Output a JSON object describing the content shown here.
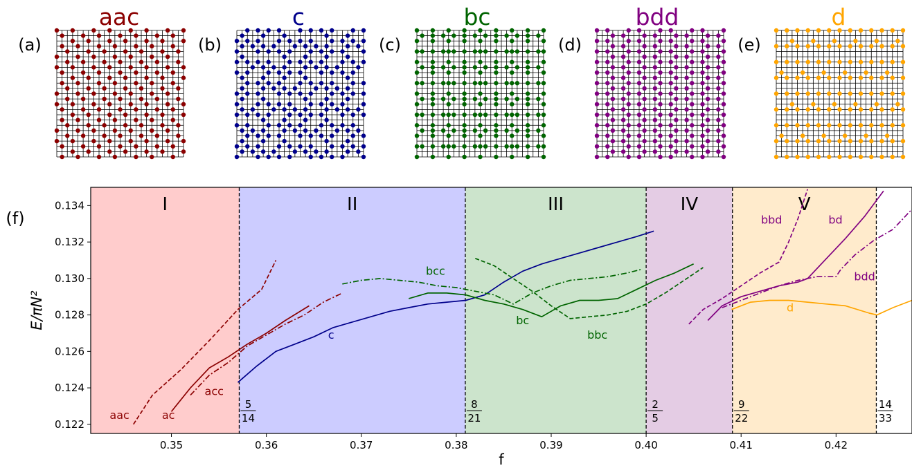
{
  "panels": [
    {
      "label": "(a)",
      "title": "aac",
      "color": "#8b0000",
      "pattern": "aac"
    },
    {
      "label": "(b)",
      "title": "c",
      "color": "#00008b",
      "pattern": "c"
    },
    {
      "label": "(c)",
      "title": "bc",
      "color": "#006400",
      "pattern": "bc"
    },
    {
      "label": "(d)",
      "title": "bdd",
      "color": "#800080",
      "pattern": "bdd"
    },
    {
      "label": "(e)",
      "title": "d",
      "color": "#ffa500",
      "pattern": "d"
    }
  ],
  "chart_data": {
    "type": "line",
    "panel_label": "(f)",
    "xlabel": "f",
    "ylabel": "E/πN²",
    "xlim": [
      0.3415,
      0.428
    ],
    "ylim": [
      0.1215,
      0.135
    ],
    "xticks": [
      0.35,
      0.36,
      0.37,
      0.38,
      0.39,
      0.4,
      0.41,
      0.42
    ],
    "xtick_labels": [
      "0.35",
      "0.36",
      "0.37",
      "0.38",
      "0.39",
      "0.40",
      "0.41",
      "0.42"
    ],
    "yticks": [
      0.122,
      0.124,
      0.126,
      0.128,
      0.13,
      0.132,
      0.134
    ],
    "ytick_labels": [
      "0.122",
      "0.124",
      "0.126",
      "0.128",
      "0.130",
      "0.132",
      "0.134"
    ],
    "grid": false,
    "regions": [
      {
        "name": "I",
        "x0": 0.3415,
        "x1": 0.357143,
        "color": "#ffcccc"
      },
      {
        "name": "II",
        "x0": 0.357143,
        "x1": 0.380952,
        "color": "#ccccff"
      },
      {
        "name": "III",
        "x0": 0.380952,
        "x1": 0.4,
        "color": "#cce4cc"
      },
      {
        "name": "IV",
        "x0": 0.4,
        "x1": 0.409091,
        "color": "#e4cce4"
      },
      {
        "name": "V",
        "x0": 0.409091,
        "x1": 0.424242,
        "color": "#ffebcc"
      }
    ],
    "boundaries": [
      {
        "x": 0.357143,
        "num": "5",
        "den": "14"
      },
      {
        "x": 0.380952,
        "num": "8",
        "den": "21"
      },
      {
        "x": 0.4,
        "num": "2",
        "den": "5"
      },
      {
        "x": 0.409091,
        "num": "9",
        "den": "22"
      },
      {
        "x": 0.424242,
        "num": "14",
        "den": "33"
      }
    ],
    "series": [
      {
        "name": "aac",
        "color": "#8b0000",
        "dash": "dashed",
        "x": [
          0.346,
          0.348,
          0.351,
          0.354,
          0.357,
          0.3595,
          0.361
        ],
        "y": [
          0.122,
          0.1236,
          0.125,
          0.1266,
          0.1283,
          0.1294,
          0.131
        ]
      },
      {
        "name": "ac",
        "color": "#8b0000",
        "dash": "solid",
        "x": [
          0.35,
          0.352,
          0.354,
          0.356,
          0.358,
          0.36,
          0.362,
          0.3645
        ],
        "y": [
          0.1227,
          0.124,
          0.1251,
          0.1257,
          0.1264,
          0.127,
          0.1277,
          0.1285
        ]
      },
      {
        "name": "acc",
        "color": "#8b0000",
        "dash": "dashdot",
        "x": [
          0.352,
          0.354,
          0.356,
          0.358,
          0.36,
          0.362,
          0.364,
          0.366,
          0.368
        ],
        "y": [
          0.1236,
          0.1247,
          0.1254,
          0.1263,
          0.1269,
          0.1275,
          0.128,
          0.1287,
          0.1292
        ]
      },
      {
        "name": "c",
        "color": "#00008b",
        "dash": "solid",
        "x": [
          0.357,
          0.359,
          0.361,
          0.363,
          0.365,
          0.367,
          0.369,
          0.371,
          0.373,
          0.375,
          0.377,
          0.379,
          0.381,
          0.383,
          0.385,
          0.387,
          0.389,
          0.391,
          0.393,
          0.395,
          0.397,
          0.399,
          0.4008
        ],
        "y": [
          0.1243,
          0.1252,
          0.126,
          0.1264,
          0.1268,
          0.1273,
          0.1276,
          0.1279,
          0.1282,
          0.1284,
          0.1286,
          0.1287,
          0.1288,
          0.1291,
          0.1298,
          0.1304,
          0.1308,
          0.1311,
          0.1314,
          0.1317,
          0.132,
          0.1323,
          0.1326
        ]
      },
      {
        "name": "bcc",
        "color": "#006400",
        "dash": "dashdot",
        "x": [
          0.368,
          0.37,
          0.372,
          0.374,
          0.376,
          0.378,
          0.38,
          0.382,
          0.384,
          0.386,
          0.388,
          0.39,
          0.392,
          0.394,
          0.396,
          0.398,
          0.3995
        ],
        "y": [
          0.1297,
          0.1299,
          0.13,
          0.1299,
          0.1298,
          0.1296,
          0.1295,
          0.1293,
          0.1291,
          0.1286,
          0.1292,
          0.1296,
          0.1299,
          0.13,
          0.1301,
          0.1303,
          0.1305
        ]
      },
      {
        "name": "bc",
        "color": "#006400",
        "dash": "solid",
        "x": [
          0.375,
          0.377,
          0.379,
          0.381,
          0.383,
          0.385,
          0.387,
          0.389,
          0.391,
          0.393,
          0.395,
          0.397,
          0.399,
          0.401,
          0.403,
          0.405
        ],
        "y": [
          0.1289,
          0.1292,
          0.1292,
          0.1291,
          0.1288,
          0.1286,
          0.1283,
          0.1279,
          0.1285,
          0.1288,
          0.1288,
          0.1289,
          0.1294,
          0.1299,
          0.1303,
          0.1308
        ]
      },
      {
        "name": "bbc",
        "color": "#006400",
        "dash": "dashed",
        "x": [
          0.382,
          0.384,
          0.386,
          0.388,
          0.39,
          0.392,
          0.394,
          0.396,
          0.398,
          0.4,
          0.402,
          0.404,
          0.406
        ],
        "y": [
          0.1311,
          0.1307,
          0.13,
          0.1293,
          0.1285,
          0.1278,
          0.1279,
          0.128,
          0.1282,
          0.1286,
          0.1292,
          0.1299,
          0.1306
        ]
      },
      {
        "name": "bbd",
        "color": "#800080",
        "dash": "dashed",
        "x": [
          0.4045,
          0.406,
          0.408,
          0.41,
          0.412,
          0.414,
          0.415,
          0.416,
          0.417
        ],
        "y": [
          0.1275,
          0.1283,
          0.1289,
          0.1296,
          0.1303,
          0.1309,
          0.132,
          0.1333,
          0.1349
        ]
      },
      {
        "name": "bd",
        "color": "#800080",
        "dash": "solid",
        "x": [
          0.4065,
          0.408,
          0.41,
          0.412,
          0.414,
          0.416,
          0.417,
          0.419,
          0.421,
          0.423,
          0.425
        ],
        "y": [
          0.1277,
          0.1285,
          0.129,
          0.1293,
          0.1296,
          0.1298,
          0.13,
          0.1311,
          0.1322,
          0.1334,
          0.1348
        ]
      },
      {
        "name": "bdd",
        "color": "#800080",
        "dash": "dashdot",
        "x": [
          0.408,
          0.41,
          0.412,
          0.414,
          0.416,
          0.418,
          0.42,
          0.4205,
          0.422,
          0.424,
          0.426,
          0.428
        ],
        "y": [
          0.1284,
          0.1288,
          0.1292,
          0.1296,
          0.1299,
          0.1301,
          0.1301,
          0.1305,
          0.1313,
          0.1321,
          0.1327,
          0.1338
        ]
      },
      {
        "name": "d",
        "color": "#ffa500",
        "dash": "solid",
        "x": [
          0.409,
          0.411,
          0.413,
          0.415,
          0.417,
          0.419,
          0.421,
          0.4235,
          0.4243,
          0.426,
          0.428
        ],
        "y": [
          0.1283,
          0.1287,
          0.1288,
          0.1288,
          0.1287,
          0.1286,
          0.1285,
          0.1281,
          0.128,
          0.1284,
          0.1288
        ]
      }
    ],
    "annotations": [
      {
        "text": "aac",
        "x": 0.3435,
        "y": 0.1223,
        "color": "#8b0000"
      },
      {
        "text": "ac",
        "x": 0.349,
        "y": 0.1223,
        "color": "#8b0000"
      },
      {
        "text": "acc",
        "x": 0.3535,
        "y": 0.1236,
        "color": "#8b0000"
      },
      {
        "text": "c",
        "x": 0.3665,
        "y": 0.1267,
        "color": "#00008b"
      },
      {
        "text": "bcc",
        "x": 0.3768,
        "y": 0.1302,
        "color": "#006400"
      },
      {
        "text": "bc",
        "x": 0.3863,
        "y": 0.1275,
        "color": "#006400"
      },
      {
        "text": "bbc",
        "x": 0.3938,
        "y": 0.1267,
        "color": "#006400"
      },
      {
        "text": "bbd",
        "x": 0.4121,
        "y": 0.133,
        "color": "#800080"
      },
      {
        "text": "bd",
        "x": 0.4192,
        "y": 0.133,
        "color": "#800080"
      },
      {
        "text": "bdd",
        "x": 0.4219,
        "y": 0.1299,
        "color": "#800080"
      },
      {
        "text": "d",
        "x": 0.4148,
        "y": 0.1282,
        "color": "#ffa500"
      }
    ]
  }
}
